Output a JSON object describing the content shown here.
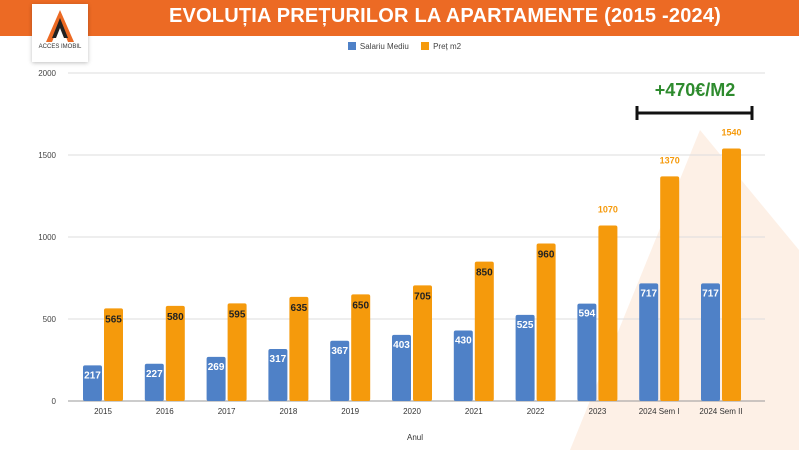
{
  "header": {
    "title": "EVOLUȚIA PREȚURILOR LA APARTAMENTE (2015 -2024)",
    "logo_text": "ACCES IMOBIL",
    "watermark": "ACCES IMOBIL"
  },
  "annotation": {
    "text": "+470€/M2"
  },
  "chart_data": {
    "type": "bar",
    "title": "EVOLUȚIA PREȚURILOR LA APARTAMENTE (2015 -2024)",
    "xlabel": "Anul",
    "ylabel": "",
    "ylim": [
      0,
      2000
    ],
    "yticks": [
      "0",
      "500",
      "1000",
      "1500",
      "2000"
    ],
    "grid": true,
    "legend_position": "top",
    "categories": [
      "2015",
      "2016",
      "2017",
      "2018",
      "2019",
      "2020",
      "2021",
      "2022",
      "2023",
      "2024 Sem I",
      "2024 Sem II"
    ],
    "series": [
      {
        "name": "Salariu Mediu",
        "color": "#4f81c7",
        "values": [
          217,
          227,
          269,
          317,
          367,
          403,
          430,
          525,
          594,
          717,
          717
        ]
      },
      {
        "name": "Preț m2",
        "color": "#f59a0c",
        "values": [
          565,
          580,
          595,
          635,
          650,
          705,
          850,
          960,
          1070,
          1370,
          1540
        ]
      }
    ]
  }
}
